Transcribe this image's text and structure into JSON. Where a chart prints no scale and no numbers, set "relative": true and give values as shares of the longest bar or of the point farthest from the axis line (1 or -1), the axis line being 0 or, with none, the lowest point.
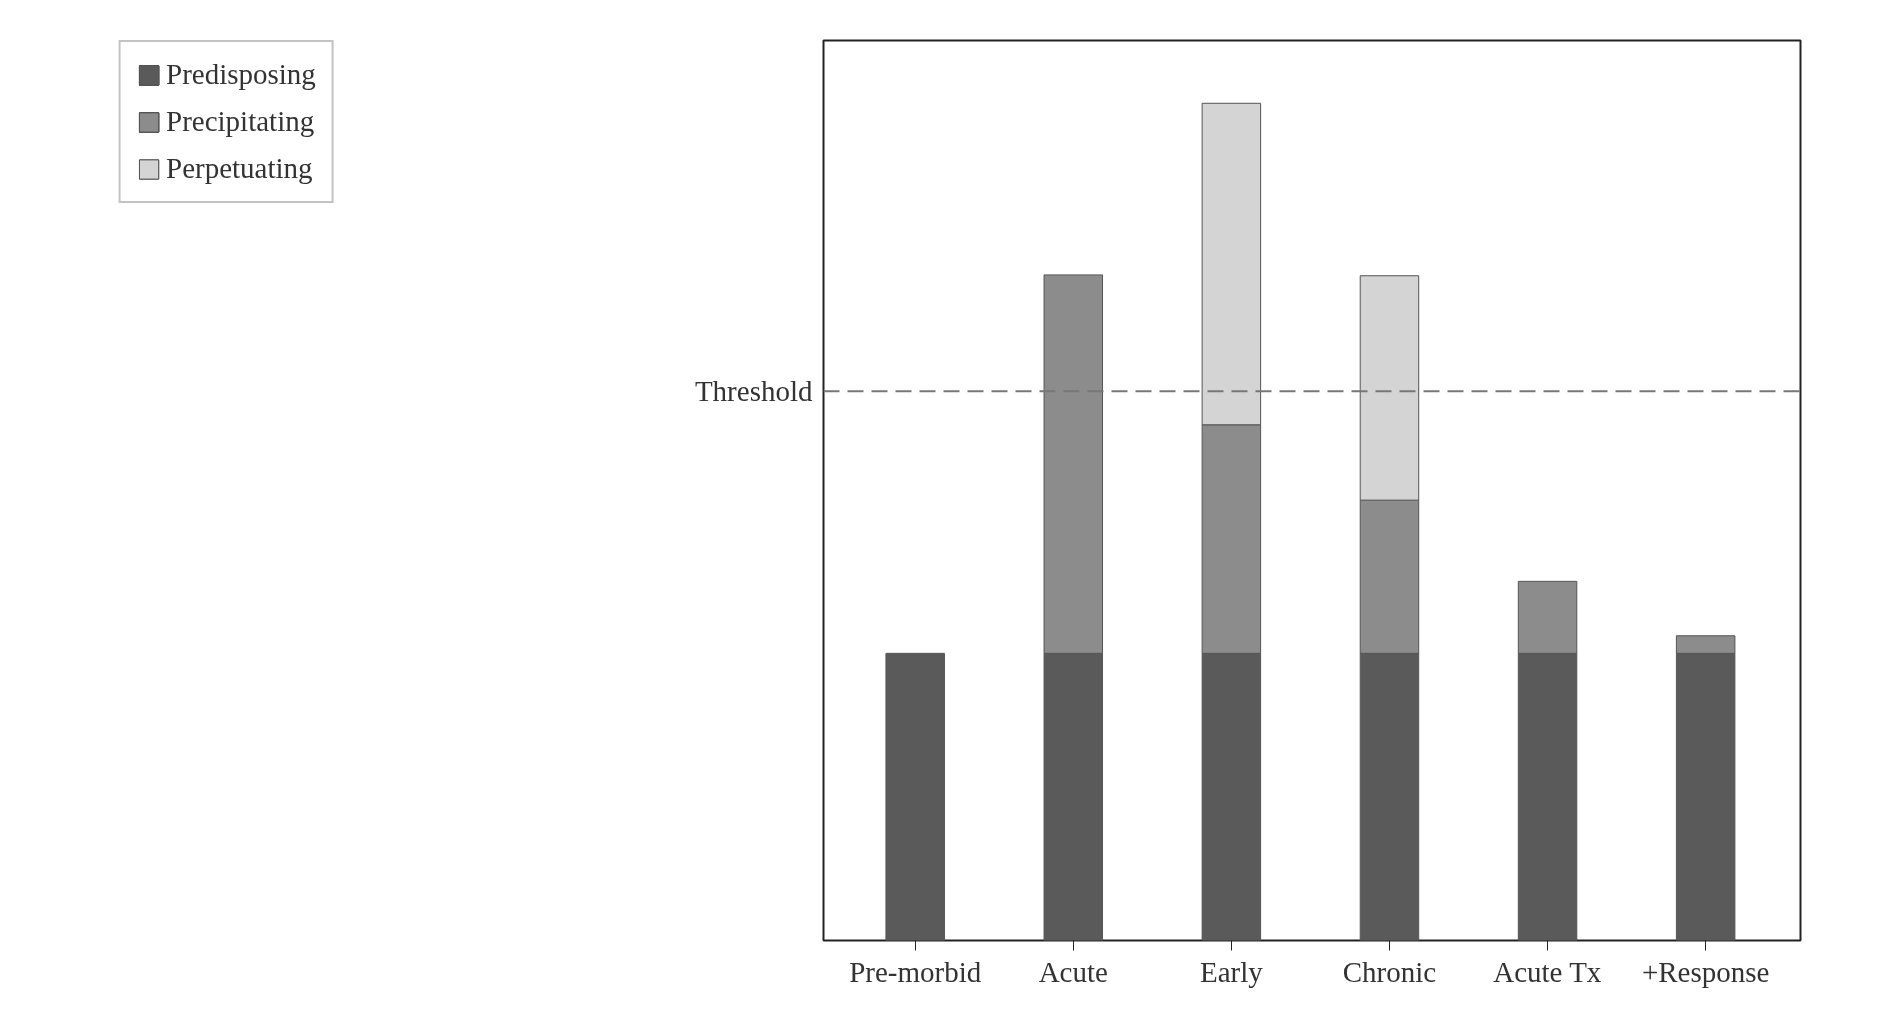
{
  "chart_data": {
    "type": "bar",
    "stacked": true,
    "relative": true,
    "categories": [
      "Pre-morbid",
      "Acute",
      "Early",
      "Chronic",
      "Acute Tx",
      "+Response"
    ],
    "series": [
      {
        "name": "Predisposing",
        "color": "#5a5a5a",
        "values": [
          0.343,
          0.343,
          0.343,
          0.343,
          0.343,
          0.343
        ]
      },
      {
        "name": "Precipitating",
        "color": "#8c8c8c",
        "values": [
          null,
          0.452,
          0.273,
          0.183,
          0.086,
          0.021
        ]
      },
      {
        "name": "Perpetuating",
        "color": "#d4d4d4",
        "values": [
          null,
          null,
          0.384,
          0.268,
          null,
          null
        ]
      }
    ],
    "ref_lines": [
      {
        "axis": "y",
        "value": 0.656,
        "label": "Threshold",
        "color": "#777777",
        "line_style": "dashed"
      }
    ],
    "legend": "top left",
    "grid": false
  }
}
